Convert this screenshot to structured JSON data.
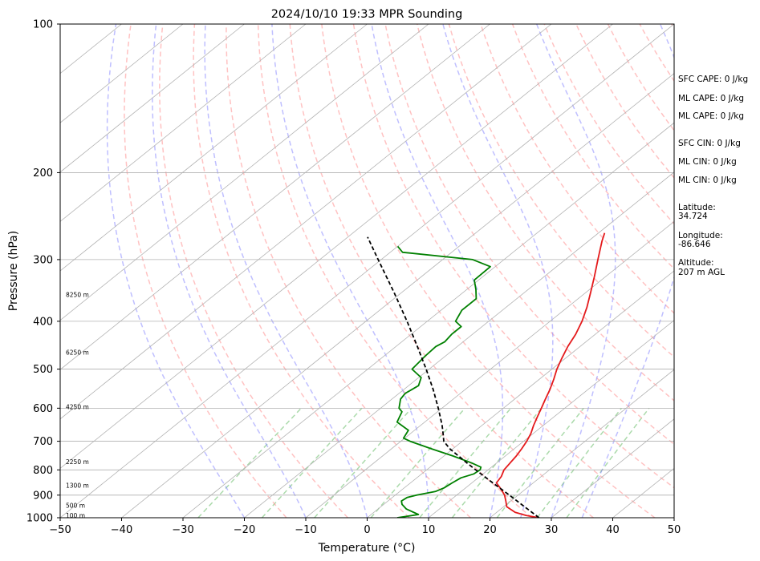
{
  "chart_data": {
    "type": "skew-t",
    "title": "2024/10/10 19:33 MPR Sounding",
    "xlabel": "Temperature (°C)",
    "ylabel": "Pressure (hPa)",
    "xlim": [
      -50,
      50
    ],
    "ylim": [
      1000,
      100
    ],
    "yscale": "log",
    "x_ticks": [
      "−50",
      "−40",
      "−30",
      "−20",
      "−10",
      "0",
      "10",
      "20",
      "30",
      "40",
      "50"
    ],
    "y_ticks": [
      "100",
      "200",
      "300",
      "400",
      "500",
      "600",
      "700",
      "800",
      "900",
      "1000"
    ],
    "grid": true,
    "series": [
      {
        "key": "temperature",
        "color": "#e41a1c",
        "points": [
          [
            1000,
            28.0
          ],
          [
            990,
            25.5
          ],
          [
            975,
            23.0
          ],
          [
            950,
            20.5
          ],
          [
            925,
            19.2
          ],
          [
            900,
            17.8
          ],
          [
            875,
            16.0
          ],
          [
            850,
            14.0
          ],
          [
            825,
            13.5
          ],
          [
            800,
            12.6
          ],
          [
            775,
            12.2
          ],
          [
            750,
            11.8
          ],
          [
            725,
            11.2
          ],
          [
            700,
            10.5
          ],
          [
            675,
            9.6
          ],
          [
            650,
            8.4
          ],
          [
            625,
            7.3
          ],
          [
            600,
            6.2
          ],
          [
            575,
            5.0
          ],
          [
            550,
            3.8
          ],
          [
            525,
            2.4
          ],
          [
            500,
            0.8
          ],
          [
            475,
            -0.6
          ],
          [
            450,
            -2.0
          ],
          [
            425,
            -3.2
          ],
          [
            400,
            -4.8
          ],
          [
            375,
            -6.8
          ],
          [
            350,
            -9.2
          ],
          [
            325,
            -11.8
          ],
          [
            300,
            -14.7
          ],
          [
            275,
            -17.8
          ],
          [
            265,
            -19.0
          ]
        ]
      },
      {
        "key": "dewpoint",
        "color": "#008000",
        "points": [
          [
            1000,
            4.9
          ],
          [
            985,
            7.7
          ],
          [
            960,
            4.6
          ],
          [
            940,
            3.0
          ],
          [
            925,
            2.2
          ],
          [
            910,
            2.4
          ],
          [
            900,
            3.5
          ],
          [
            885,
            5.8
          ],
          [
            870,
            6.5
          ],
          [
            850,
            6.8
          ],
          [
            830,
            7.2
          ],
          [
            815,
            8.5
          ],
          [
            800,
            8.7
          ],
          [
            790,
            8.3
          ],
          [
            775,
            6.0
          ],
          [
            750,
            1.5
          ],
          [
            725,
            -3.5
          ],
          [
            700,
            -8.5
          ],
          [
            690,
            -10.2
          ],
          [
            665,
            -11.0
          ],
          [
            640,
            -14.5
          ],
          [
            610,
            -15.8
          ],
          [
            600,
            -17.0
          ],
          [
            575,
            -18.6
          ],
          [
            560,
            -19.0
          ],
          [
            540,
            -18.4
          ],
          [
            520,
            -19.6
          ],
          [
            500,
            -22.8
          ],
          [
            470,
            -23.3
          ],
          [
            450,
            -23.5
          ],
          [
            440,
            -23.0
          ],
          [
            425,
            -23.4
          ],
          [
            410,
            -23.4
          ],
          [
            400,
            -25.4
          ],
          [
            380,
            -26.6
          ],
          [
            360,
            -26.6
          ],
          [
            345,
            -28.5
          ],
          [
            330,
            -30.7
          ],
          [
            310,
            -30.8
          ],
          [
            300,
            -35.1
          ],
          [
            290,
            -48.0
          ],
          [
            282,
            -50.0
          ]
        ]
      },
      {
        "key": "parcel",
        "color": "#000000",
        "points": [
          [
            1000,
            28.0
          ],
          [
            950,
            23.4
          ],
          [
            900,
            18.6
          ],
          [
            850,
            13.4
          ],
          [
            800,
            8.0
          ],
          [
            775,
            5.2
          ],
          [
            750,
            2.4
          ],
          [
            725,
            -0.5
          ],
          [
            700,
            -3.0
          ],
          [
            675,
            -4.7
          ],
          [
            650,
            -6.5
          ],
          [
            625,
            -8.5
          ],
          [
            600,
            -10.6
          ],
          [
            550,
            -15.2
          ],
          [
            500,
            -20.5
          ],
          [
            450,
            -26.5
          ],
          [
            400,
            -33.3
          ],
          [
            350,
            -41.2
          ],
          [
            300,
            -50.5
          ],
          [
            270,
            -56.8
          ]
        ]
      }
    ],
    "height_markers": [
      {
        "label": "100 m",
        "pressure": 988
      },
      {
        "label": "500 m",
        "pressure": 943
      },
      {
        "label": "1300 m",
        "pressure": 860
      },
      {
        "label": "2250 m",
        "pressure": 770
      },
      {
        "label": "4250 m",
        "pressure": 596
      },
      {
        "label": "6250 m",
        "pressure": 462
      },
      {
        "label": "8250 m",
        "pressure": 353
      }
    ],
    "annotations": [
      "SFC CAPE: 0 J/kg",
      "ML CAPE: 0 J/kg",
      "ML CAPE: 0 J/kg",
      "SFC CIN: 0 J/kg",
      "ML CIN: 0 J/kg",
      "ML CIN: 0 J/kg",
      "Latitude:",
      "34.724",
      "Longitude:",
      "-86.646",
      "Altitude:",
      "207 m AGL"
    ],
    "reference_lines": {
      "dry_adiabats": {
        "color": "#ff9999",
        "style": "dashed",
        "theta_K": [
          260,
          270,
          280,
          290,
          300,
          310,
          320,
          330,
          340,
          350,
          360,
          370,
          380,
          390,
          400,
          410,
          420,
          430,
          440,
          450
        ]
      },
      "moist_adiabats": {
        "color": "#8080ff",
        "style": "dashed",
        "theta_w_C": [
          -20,
          -10,
          0,
          10,
          20,
          25,
          30,
          35
        ]
      },
      "mixing_ratio": {
        "color": "#66bb66",
        "style": "dashed",
        "w_gkg": [
          0.4,
          1,
          2,
          4,
          7,
          10,
          16,
          24,
          32
        ]
      },
      "isotherms": {
        "color": "#b3b3b3",
        "style": "solid"
      }
    }
  }
}
